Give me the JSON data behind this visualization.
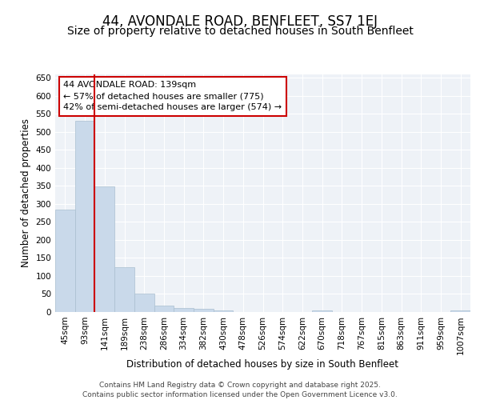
{
  "title": "44, AVONDALE ROAD, BENFLEET, SS7 1EJ",
  "subtitle": "Size of property relative to detached houses in South Benfleet",
  "xlabel": "Distribution of detached houses by size in South Benfleet",
  "ylabel": "Number of detached properties",
  "bar_color": "#c9d9ea",
  "bar_edge_color": "#aabfcf",
  "vline_color": "#cc0000",
  "vline_x_index": 2,
  "annotation_text": "44 AVONDALE ROAD: 139sqm\n← 57% of detached houses are smaller (775)\n42% of semi-detached houses are larger (574) →",
  "annotation_box_color": "#cc0000",
  "categories": [
    "45sqm",
    "93sqm",
    "141sqm",
    "189sqm",
    "238sqm",
    "286sqm",
    "334sqm",
    "382sqm",
    "430sqm",
    "478sqm",
    "526sqm",
    "574sqm",
    "622sqm",
    "670sqm",
    "718sqm",
    "767sqm",
    "815sqm",
    "863sqm",
    "911sqm",
    "959sqm",
    "1007sqm"
  ],
  "values": [
    283,
    530,
    348,
    125,
    50,
    18,
    10,
    9,
    5,
    0,
    0,
    0,
    0,
    4,
    0,
    0,
    0,
    0,
    0,
    0,
    4
  ],
  "ylim": [
    0,
    660
  ],
  "yticks": [
    0,
    50,
    100,
    150,
    200,
    250,
    300,
    350,
    400,
    450,
    500,
    550,
    600,
    650
  ],
  "footer_text": "Contains HM Land Registry data © Crown copyright and database right 2025.\nContains public sector information licensed under the Open Government Licence v3.0.",
  "background_color": "#eef2f7",
  "grid_color": "#ffffff",
  "fig_bg_color": "#ffffff",
  "title_fontsize": 12,
  "subtitle_fontsize": 10,
  "axis_label_fontsize": 8.5,
  "tick_fontsize": 7.5,
  "annotation_fontsize": 8,
  "footer_fontsize": 6.5
}
